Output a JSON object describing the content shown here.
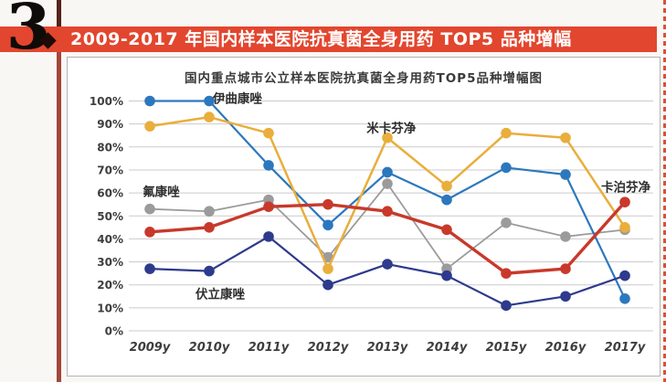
{
  "page": {
    "section_number": "3",
    "section_marker": "diamond-period"
  },
  "banner": {
    "title": "2009-2017 年国内样本医院抗真菌全身用药 TOP5 品种增幅"
  },
  "colors": {
    "banner_bg": "#E2462E",
    "banner_text": "#FFFFFF",
    "accent_vline": "#A6453B",
    "accent_vline_top": "#53221B",
    "right_dashed_border": "#D8503C",
    "grid": "#CBCBCB",
    "axis_text": "#3D3D3D"
  },
  "chart_data": {
    "type": "line",
    "title": "国内重点城市公立样本医院抗真菌全身用药TOP5品种增幅图",
    "categories": [
      "2009y",
      "2010y",
      "2011y",
      "2012y",
      "2013y",
      "2014y",
      "2015y",
      "2016y",
      "2017y"
    ],
    "y_ticks": [
      "0%",
      "10%",
      "20%",
      "30%",
      "40%",
      "50%",
      "60%",
      "70%",
      "80%",
      "90%",
      "100%"
    ],
    "ylim": [
      0,
      100
    ],
    "grid": true,
    "legend_position": "none-inline-labels",
    "unit": "percent",
    "series": [
      {
        "key": "fluconazole",
        "name": "氟康唑",
        "color": "#9B9B9B",
        "stroke_width": 1.8,
        "values": [
          53,
          52,
          57,
          32,
          64,
          27,
          47,
          41,
          44
        ]
      },
      {
        "key": "itraconazole",
        "name": "伊曲康唑",
        "color": "#2C78BE",
        "stroke_width": 2.2,
        "values": [
          100,
          100,
          72,
          46,
          69,
          57,
          71,
          68,
          14
        ]
      },
      {
        "key": "micafungin",
        "name": "米卡芬净",
        "color": "#E9AE3B",
        "stroke_width": 2.5,
        "values": [
          89,
          93,
          86,
          27,
          84,
          63,
          86,
          84,
          45
        ]
      },
      {
        "key": "voriconazole",
        "name": "伏立康唑",
        "color": "#2E3A8C",
        "stroke_width": 2.2,
        "values": [
          27,
          26,
          41,
          20,
          29,
          24,
          11,
          15,
          24
        ]
      },
      {
        "key": "caspofungin",
        "name": "卡泊芬净",
        "color": "#C8392B",
        "stroke_width": 3.4,
        "values": [
          43,
          45,
          54,
          55,
          52,
          44,
          25,
          27,
          56
        ]
      }
    ],
    "labels": [
      {
        "key": "itraconazole",
        "text": "伊曲康唑",
        "x_index": 1.06,
        "y_pct": 101
      },
      {
        "key": "micafungin",
        "text": "米卡芬净",
        "x_index": 3.65,
        "y_pct": 88
      },
      {
        "key": "fluconazole",
        "text": "氟康唑",
        "x_index": -0.12,
        "y_pct": 60.5
      },
      {
        "key": "voriconazole",
        "text": "伏立康唑",
        "x_index": 0.77,
        "y_pct": 16
      },
      {
        "key": "caspofungin",
        "text": "卡泊芬净",
        "x_index": 7.6,
        "y_pct": 62.5
      }
    ]
  }
}
